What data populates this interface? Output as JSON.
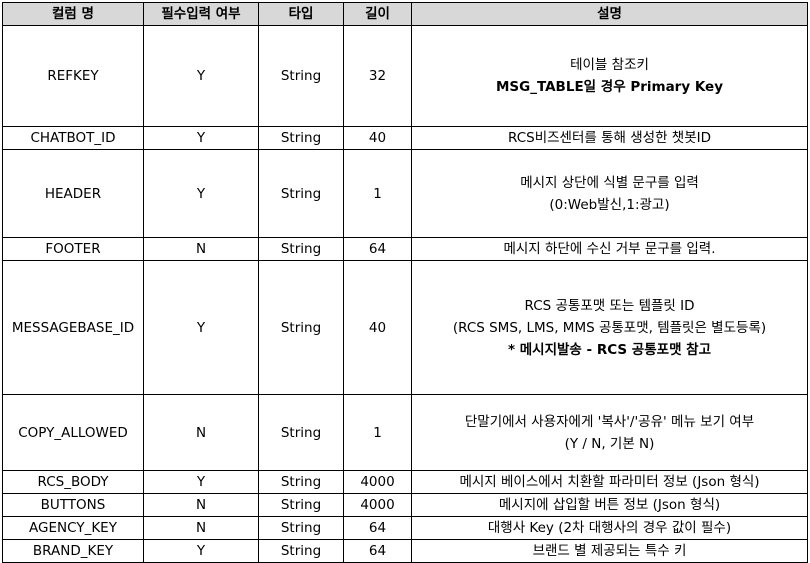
{
  "columns": [
    "컬럼 명",
    "필수입력 여부",
    "타입",
    "길이",
    "설명"
  ],
  "rows": [
    {
      "name": "REFKEY",
      "required": "Y",
      "type": "String",
      "length": "32",
      "desc": [
        {
          "text": "테이블 참조키",
          "bold": false
        },
        {
          "text": "MSG_TABLE일 경우 Primary Key",
          "bold": true
        }
      ]
    },
    {
      "name": "CHATBOT_ID",
      "required": "Y",
      "type": "String",
      "length": "40",
      "desc": [
        {
          "text": "RCS비즈센터를 통해 생성한 챗봇ID",
          "bold": false
        }
      ]
    },
    {
      "name": "HEADER",
      "required": "Y",
      "type": "String",
      "length": "1",
      "desc": [
        {
          "text": "메시지 상단에 식별 문구를 입력",
          "bold": false
        },
        {
          "text": "(0:Web발신,1:광고)",
          "bold": false
        }
      ]
    },
    {
      "name": "FOOTER",
      "required": "N",
      "type": "String",
      "length": "64",
      "desc": [
        {
          "text": "메시지 하단에 수신 거부 문구를 입력.",
          "bold": false
        }
      ]
    },
    {
      "name": "MESSAGEBASE_ID",
      "required": "Y",
      "type": "String",
      "length": "40",
      "desc": [
        {
          "text": "RCS 공통포맷 또는 템플릿 ID",
          "bold": false
        },
        {
          "text": "(RCS SMS, LMS, MMS 공통포맷, 템플릿은 별도등록)",
          "bold": false
        },
        {
          "text": "* 메시지발송 - RCS 공통포맷 참고",
          "bold": true
        }
      ]
    },
    {
      "name": "COPY_ALLOWED",
      "required": "N",
      "type": "String",
      "length": "1",
      "desc": [
        {
          "text": "단말기에서 사용자에게 '복사'/'공유' 메뉴 보기 여부",
          "bold": false
        },
        {
          "text": "(Y / N, 기본 N)",
          "bold": false
        }
      ]
    },
    {
      "name": "RCS_BODY",
      "required": "Y",
      "type": "String",
      "length": "4000",
      "desc": [
        {
          "text": "메시지 베이스에서 치환할 파라미터 정보 (Json 형식)",
          "bold": false
        }
      ]
    },
    {
      "name": "BUTTONS",
      "required": "N",
      "type": "String",
      "length": "4000",
      "desc": [
        {
          "text": "메시지에 삽입할 버튼 정보 (Json 형식)",
          "bold": false
        }
      ]
    },
    {
      "name": "AGENCY_KEY",
      "required": "N",
      "type": "String",
      "length": "64",
      "desc": [
        {
          "text": "대행사 Key (2차 대행사의 경우 값이 필수)",
          "bold": false
        }
      ]
    },
    {
      "name": "BRAND_KEY",
      "required": "Y",
      "type": "String",
      "length": "64",
      "desc": [
        {
          "text": "브랜드 별 제공되는 특수 키",
          "bold": false
        }
      ]
    }
  ]
}
